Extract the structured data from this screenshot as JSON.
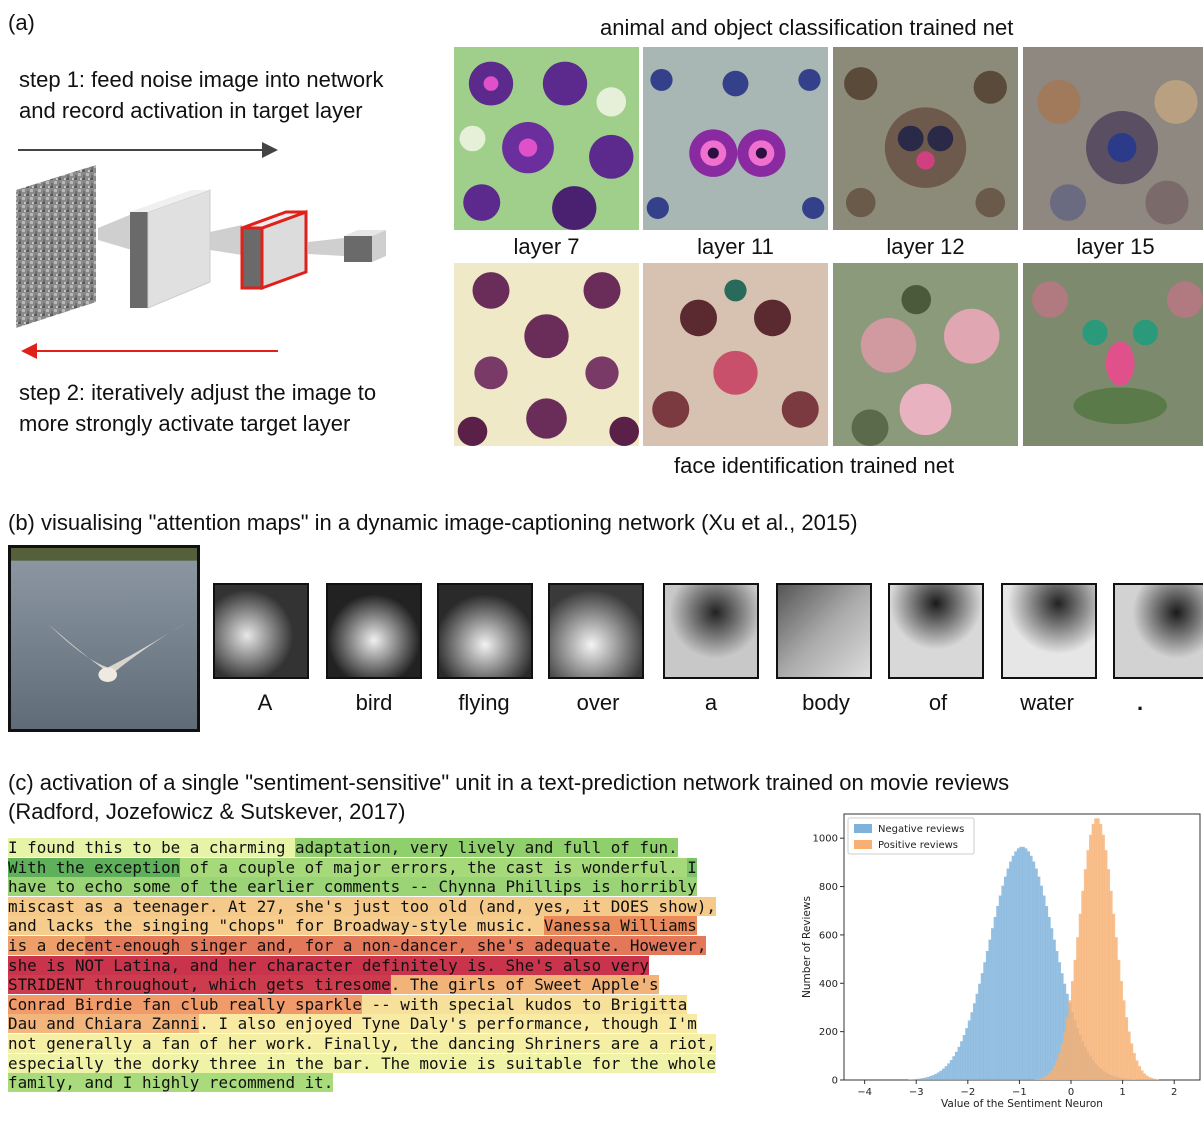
{
  "panel_a": {
    "label": "(a)",
    "step1": [
      "step 1: feed noise image into network",
      "and record activation in target layer"
    ],
    "step2": [
      "step 2: iteratively adjust the image to",
      "more strongly activate target layer"
    ],
    "top_title": "animal and object classification trained net",
    "bottom_title": "face identification trained net",
    "layer_labels": [
      "layer 7",
      "layer 11",
      "layer 12",
      "layer 15"
    ],
    "colors": {
      "arrow_forward": "#444444",
      "arrow_back": "#e0201b",
      "target_outline": "#e0201b"
    }
  },
  "panel_b": {
    "title": "(b) visualising \"attention maps\" in a dynamic image-captioning network (Xu et al., 2015)",
    "words": [
      "A",
      "bird",
      "flying",
      "over",
      "a",
      "body",
      "of",
      "water",
      "."
    ]
  },
  "panel_c": {
    "title_line1": "(c) activation of a single \"sentiment-sensitive\" unit in a text-prediction network trained on movie reviews",
    "title_line2": "(Radford, Jozefowicz & Sutskever, 2017)",
    "review_lines": [
      [
        [
          "I found this to be a charming ",
          "#e7f3a6"
        ],
        [
          "adaptation, very lively and full of fun.",
          "#8fcf6c"
        ]
      ],
      [
        [
          "With the exception",
          "#5fb05a"
        ],
        [
          " of a couple of major errors, the cast is wonderful. ",
          "#a6d97a"
        ],
        [
          "I",
          "#7cc46a"
        ]
      ],
      [
        [
          "have to echo some of the earlier comments -- Chynna Phillips is horribly",
          "#9bd477"
        ]
      ],
      [
        [
          "miscast as a teenager. At 27, she's just too old (and, yes, it DOES show),",
          "#f4c98a"
        ]
      ],
      [
        [
          "and lacks the singing \"chops\" for Broadway-style music. ",
          "#f6cd8d"
        ],
        [
          "Vanessa Williams",
          "#ea8a5a"
        ]
      ],
      [
        [
          "is a dec",
          "#ee9e69"
        ],
        [
          "ent-enough singer and, for a non-dancer, she's adequate. However,",
          "#e3775a"
        ]
      ],
      [
        [
          "she is NOT Latina, and her character definitely is. She's also very",
          "#c9344c"
        ]
      ],
      [
        [
          "STRIDENT throughout, which gets tiresome",
          "#cd3b4e"
        ],
        [
          ". The girls of Sweet Apple's",
          "#f1b377"
        ]
      ],
      [
        [
          "Conrad Birdie fan club really sparkle",
          "#f19a6a"
        ],
        [
          " -- with special kudos to Brigitta",
          "#f7e09a"
        ]
      ],
      [
        [
          "Dau and Chiara Zanni",
          "#f2b57c"
        ],
        [
          ". I also enjoyed Tyne Daly's performance, though I'm",
          "#f9eaa3"
        ]
      ],
      [
        [
          "not generally a fan of her work. Finally, the dancing Shriners are a riot,",
          "#f5efa6"
        ]
      ],
      [
        [
          "especially the dorky three in the bar. The movie is suitable for the whole",
          "#eef3a8"
        ]
      ],
      [
        [
          "family, and I highly recommend it.",
          "#a9db7c"
        ]
      ]
    ]
  },
  "chart_data": {
    "type": "histogram",
    "xlabel": "Value of the Sentiment Neuron",
    "ylabel": "Number of Reviews",
    "xlim": [
      -4.4,
      2.5
    ],
    "ylim": [
      0,
      1100
    ],
    "xticks": [
      -4,
      -3,
      -2,
      -1,
      0,
      1,
      2
    ],
    "yticks": [
      0,
      200,
      400,
      600,
      800,
      1000
    ],
    "legend_position": "top-left",
    "series": [
      {
        "name": "Negative reviews",
        "color": "#7fb2db",
        "mean": -0.95,
        "sd": 0.62,
        "peak": 965
      },
      {
        "name": "Positive reviews",
        "color": "#f7b071",
        "mean": 0.5,
        "sd": 0.34,
        "peak": 1085
      }
    ]
  }
}
